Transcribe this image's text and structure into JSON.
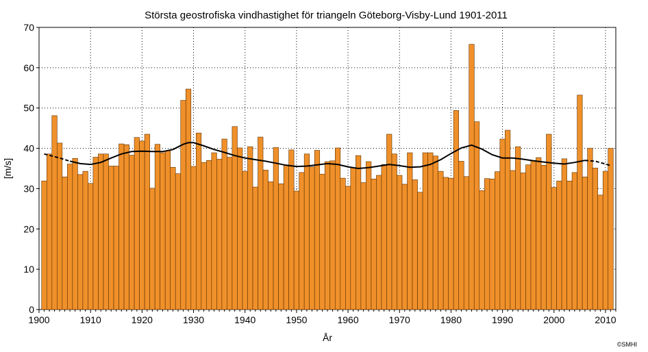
{
  "chart_data": {
    "type": "bar",
    "title": "Största geostrofiska vindhastighet för triangeln Göteborg-Visby-Lund 1901-2011",
    "xlabel": "År",
    "ylabel": "[m/s]",
    "xlim": [
      1900,
      2012
    ],
    "ylim": [
      0,
      70
    ],
    "x_ticks": [
      1900,
      1910,
      1920,
      1930,
      1940,
      1950,
      1960,
      1970,
      1980,
      1990,
      2000,
      2010
    ],
    "y_ticks": [
      0,
      10,
      20,
      30,
      40,
      50,
      60,
      70
    ],
    "grid": true,
    "legend": "none",
    "bar_color": "#f0902a",
    "bar_edge_color": "#5a3000",
    "trend_color": "#000000",
    "x": [
      1901,
      1902,
      1903,
      1904,
      1905,
      1906,
      1907,
      1908,
      1909,
      1910,
      1911,
      1912,
      1913,
      1914,
      1915,
      1916,
      1917,
      1918,
      1919,
      1920,
      1921,
      1922,
      1923,
      1924,
      1925,
      1926,
      1927,
      1928,
      1929,
      1930,
      1931,
      1932,
      1933,
      1934,
      1935,
      1936,
      1937,
      1938,
      1939,
      1940,
      1941,
      1942,
      1943,
      1944,
      1945,
      1946,
      1947,
      1948,
      1949,
      1950,
      1951,
      1952,
      1953,
      1954,
      1955,
      1956,
      1957,
      1958,
      1959,
      1960,
      1961,
      1962,
      1963,
      1964,
      1965,
      1966,
      1967,
      1968,
      1969,
      1970,
      1971,
      1972,
      1973,
      1974,
      1975,
      1976,
      1977,
      1978,
      1979,
      1980,
      1981,
      1982,
      1983,
      1984,
      1985,
      1986,
      1987,
      1988,
      1989,
      1990,
      1991,
      1992,
      1993,
      1994,
      1995,
      1996,
      1997,
      1998,
      1999,
      2000,
      2001,
      2002,
      2003,
      2004,
      2005,
      2006,
      2007,
      2008,
      2009,
      2010,
      2011
    ],
    "values": [
      31.9,
      38.6,
      48.1,
      41.3,
      32.9,
      36.1,
      37.5,
      33.5,
      34.3,
      31.3,
      37.8,
      38.6,
      38.6,
      35.6,
      35.6,
      41.1,
      40.9,
      38.3,
      42.7,
      41.8,
      43.5,
      30.1,
      41.0,
      38.9,
      39.4,
      35.3,
      33.7,
      51.9,
      54.7,
      35.5,
      43.8,
      36.5,
      37.0,
      38.9,
      37.3,
      42.3,
      37.8,
      45.4,
      40.1,
      34.3,
      40.4,
      30.4,
      42.8,
      34.6,
      31.7,
      40.2,
      31.2,
      35.9,
      39.6,
      29.4,
      34.0,
      38.6,
      35.4,
      39.5,
      33.6,
      36.7,
      36.9,
      40.1,
      32.6,
      30.6,
      35.2,
      38.2,
      31.5,
      36.7,
      32.4,
      33.3,
      36.0,
      43.5,
      38.6,
      33.3,
      31.1,
      38.9,
      32.2,
      29.1,
      38.9,
      38.9,
      38.1,
      34.3,
      32.8,
      32.6,
      49.4,
      36.8,
      33.0,
      65.8,
      46.6,
      29.5,
      32.5,
      32.4,
      34.2,
      42.3,
      44.5,
      34.5,
      40.4,
      33.9,
      35.9,
      37.0,
      37.7,
      35.8,
      43.5,
      30.3,
      31.9,
      37.4,
      31.9,
      34.0,
      53.2,
      32.9,
      40.0,
      35.1,
      28.4,
      34.3,
      40.0
    ],
    "trend": {
      "solid_range": [
        1906,
        2006
      ],
      "x": [
        1901,
        1904,
        1906,
        1908,
        1910,
        1912,
        1914,
        1916,
        1918,
        1920,
        1922,
        1924,
        1926,
        1928,
        1929,
        1930,
        1932,
        1934,
        1936,
        1938,
        1940,
        1942,
        1944,
        1946,
        1948,
        1950,
        1952,
        1954,
        1956,
        1958,
        1960,
        1962,
        1964,
        1966,
        1968,
        1970,
        1972,
        1974,
        1976,
        1978,
        1980,
        1982,
        1984,
        1986,
        1988,
        1990,
        1992,
        1994,
        1996,
        1998,
        2000,
        2002,
        2004,
        2006,
        2008,
        2010,
        2011
      ],
      "y": [
        38.6,
        37.6,
        36.8,
        36.2,
        36.0,
        36.5,
        37.6,
        38.6,
        39.2,
        39.3,
        39.2,
        39.2,
        39.7,
        41.0,
        41.4,
        41.4,
        40.6,
        39.7,
        39.0,
        38.2,
        37.6,
        37.2,
        36.8,
        36.3,
        35.8,
        35.5,
        35.6,
        35.9,
        36.2,
        36.0,
        35.4,
        35.0,
        35.2,
        35.6,
        36.0,
        35.7,
        35.3,
        35.4,
        36.0,
        37.2,
        38.7,
        40.1,
        40.8,
        39.8,
        38.4,
        37.6,
        37.6,
        37.3,
        36.9,
        36.6,
        36.3,
        36.1,
        36.5,
        37.0,
        36.8,
        36.1,
        35.7
      ]
    }
  },
  "credit": "©SMHI"
}
